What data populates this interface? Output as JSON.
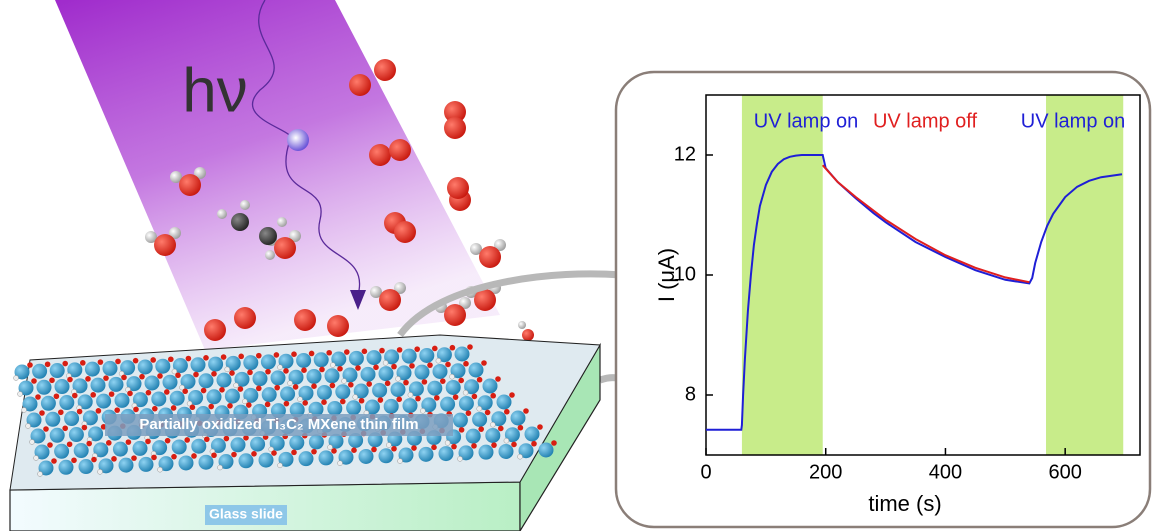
{
  "chart_data": {
    "type": "line",
    "annotations": [
      {
        "text": "UV lamp on",
        "color": "#1f1fd6"
      },
      {
        "text": "UV lamp off",
        "color": "#e01f1f"
      },
      {
        "text": "UV lamp on",
        "color": "#1f1fd6"
      }
    ],
    "x_label": "time (s)",
    "y_label": "I (μA)",
    "xlim": [
      0,
      725
    ],
    "ylim": [
      7,
      13
    ],
    "xticks": [
      0,
      200,
      400,
      600
    ],
    "yticks": [
      8,
      10,
      12
    ],
    "shaded_regions": [
      {
        "x": [
          60,
          195
        ],
        "color": "#c8ec8a"
      },
      {
        "x": [
          568,
          697
        ],
        "color": "#c8ec8a"
      }
    ],
    "series": [
      {
        "color": "#1f1fd6",
        "x": [
          0,
          59,
          60,
          62,
          65,
          70,
          75,
          80,
          85,
          90,
          100,
          110,
          120,
          130,
          140,
          150,
          160,
          170,
          180,
          190,
          195,
          200,
          220,
          250,
          280,
          300,
          350,
          400,
          450,
          500,
          540,
          545,
          550,
          560,
          570,
          580,
          600,
          620,
          640,
          660,
          695
        ],
        "values": [
          7.42,
          7.42,
          7.5,
          8.0,
          8.6,
          9.4,
          10.0,
          10.5,
          10.85,
          11.15,
          11.5,
          11.72,
          11.85,
          11.93,
          11.97,
          11.99,
          12.0,
          12.0,
          12.0,
          12.0,
          12.0,
          11.78,
          11.55,
          11.28,
          11.03,
          10.88,
          10.55,
          10.3,
          10.08,
          9.92,
          9.86,
          9.95,
          10.2,
          10.55,
          10.82,
          11.02,
          11.3,
          11.47,
          11.57,
          11.63,
          11.68
        ]
      },
      {
        "color": "#e01f1f",
        "x": [
          195,
          220,
          250,
          300,
          350,
          400,
          450,
          500,
          540
        ],
        "values": [
          11.83,
          11.55,
          11.3,
          10.92,
          10.6,
          10.33,
          10.12,
          9.96,
          9.88
        ]
      }
    ]
  },
  "illustration": {
    "symbol": "hν",
    "film_label": "Partially oxidized Ti₃C₂ MXene thin film",
    "substrate_label": "Glass slide"
  }
}
